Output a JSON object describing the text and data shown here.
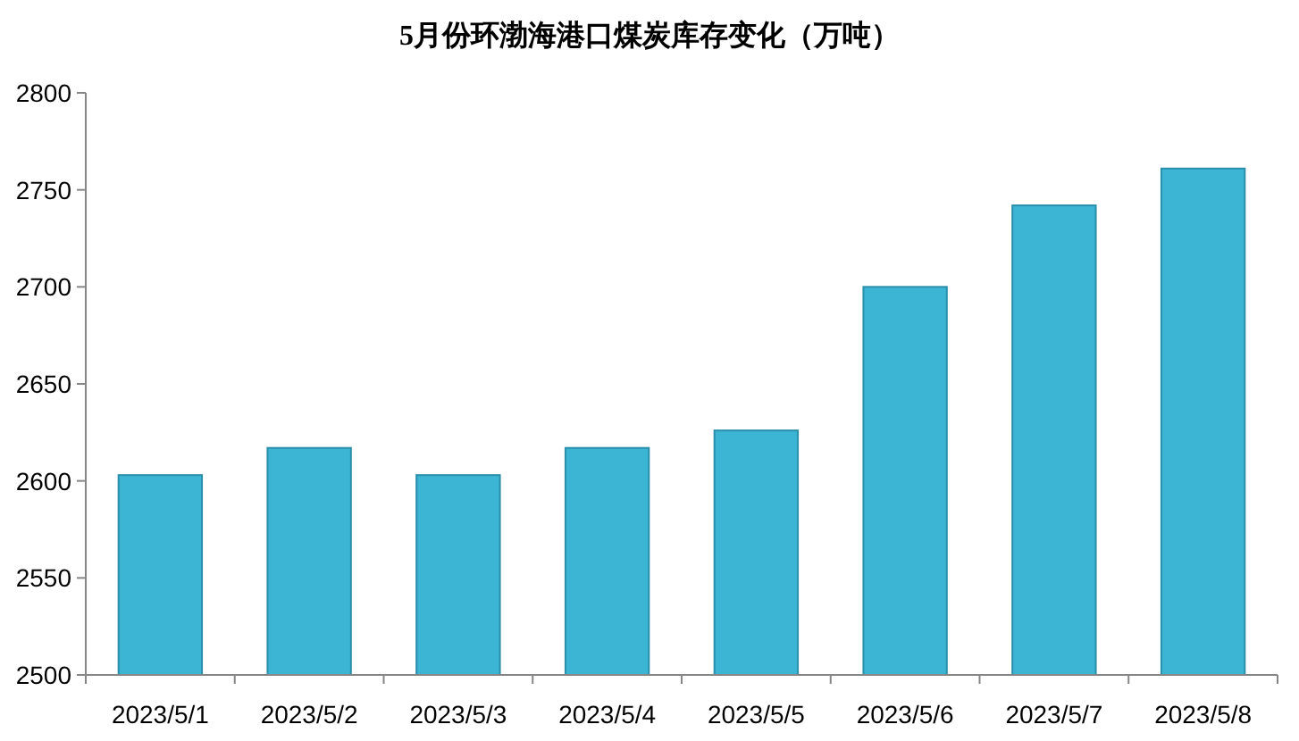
{
  "chart_data": {
    "type": "bar",
    "title": "5月份环渤海港口煤炭库存变化（万吨）",
    "categories": [
      "2023/5/1",
      "2023/5/2",
      "2023/5/3",
      "2023/5/4",
      "2023/5/5",
      "2023/5/6",
      "2023/5/7",
      "2023/5/8"
    ],
    "values": [
      2603,
      2617,
      2603,
      2617,
      2626,
      2700,
      2742,
      2761
    ],
    "color": "#3cb4d4",
    "ylim": [
      2500,
      2800
    ],
    "yticks": [
      2500,
      2550,
      2600,
      2650,
      2700,
      2750,
      2800
    ],
    "grid": false
  }
}
